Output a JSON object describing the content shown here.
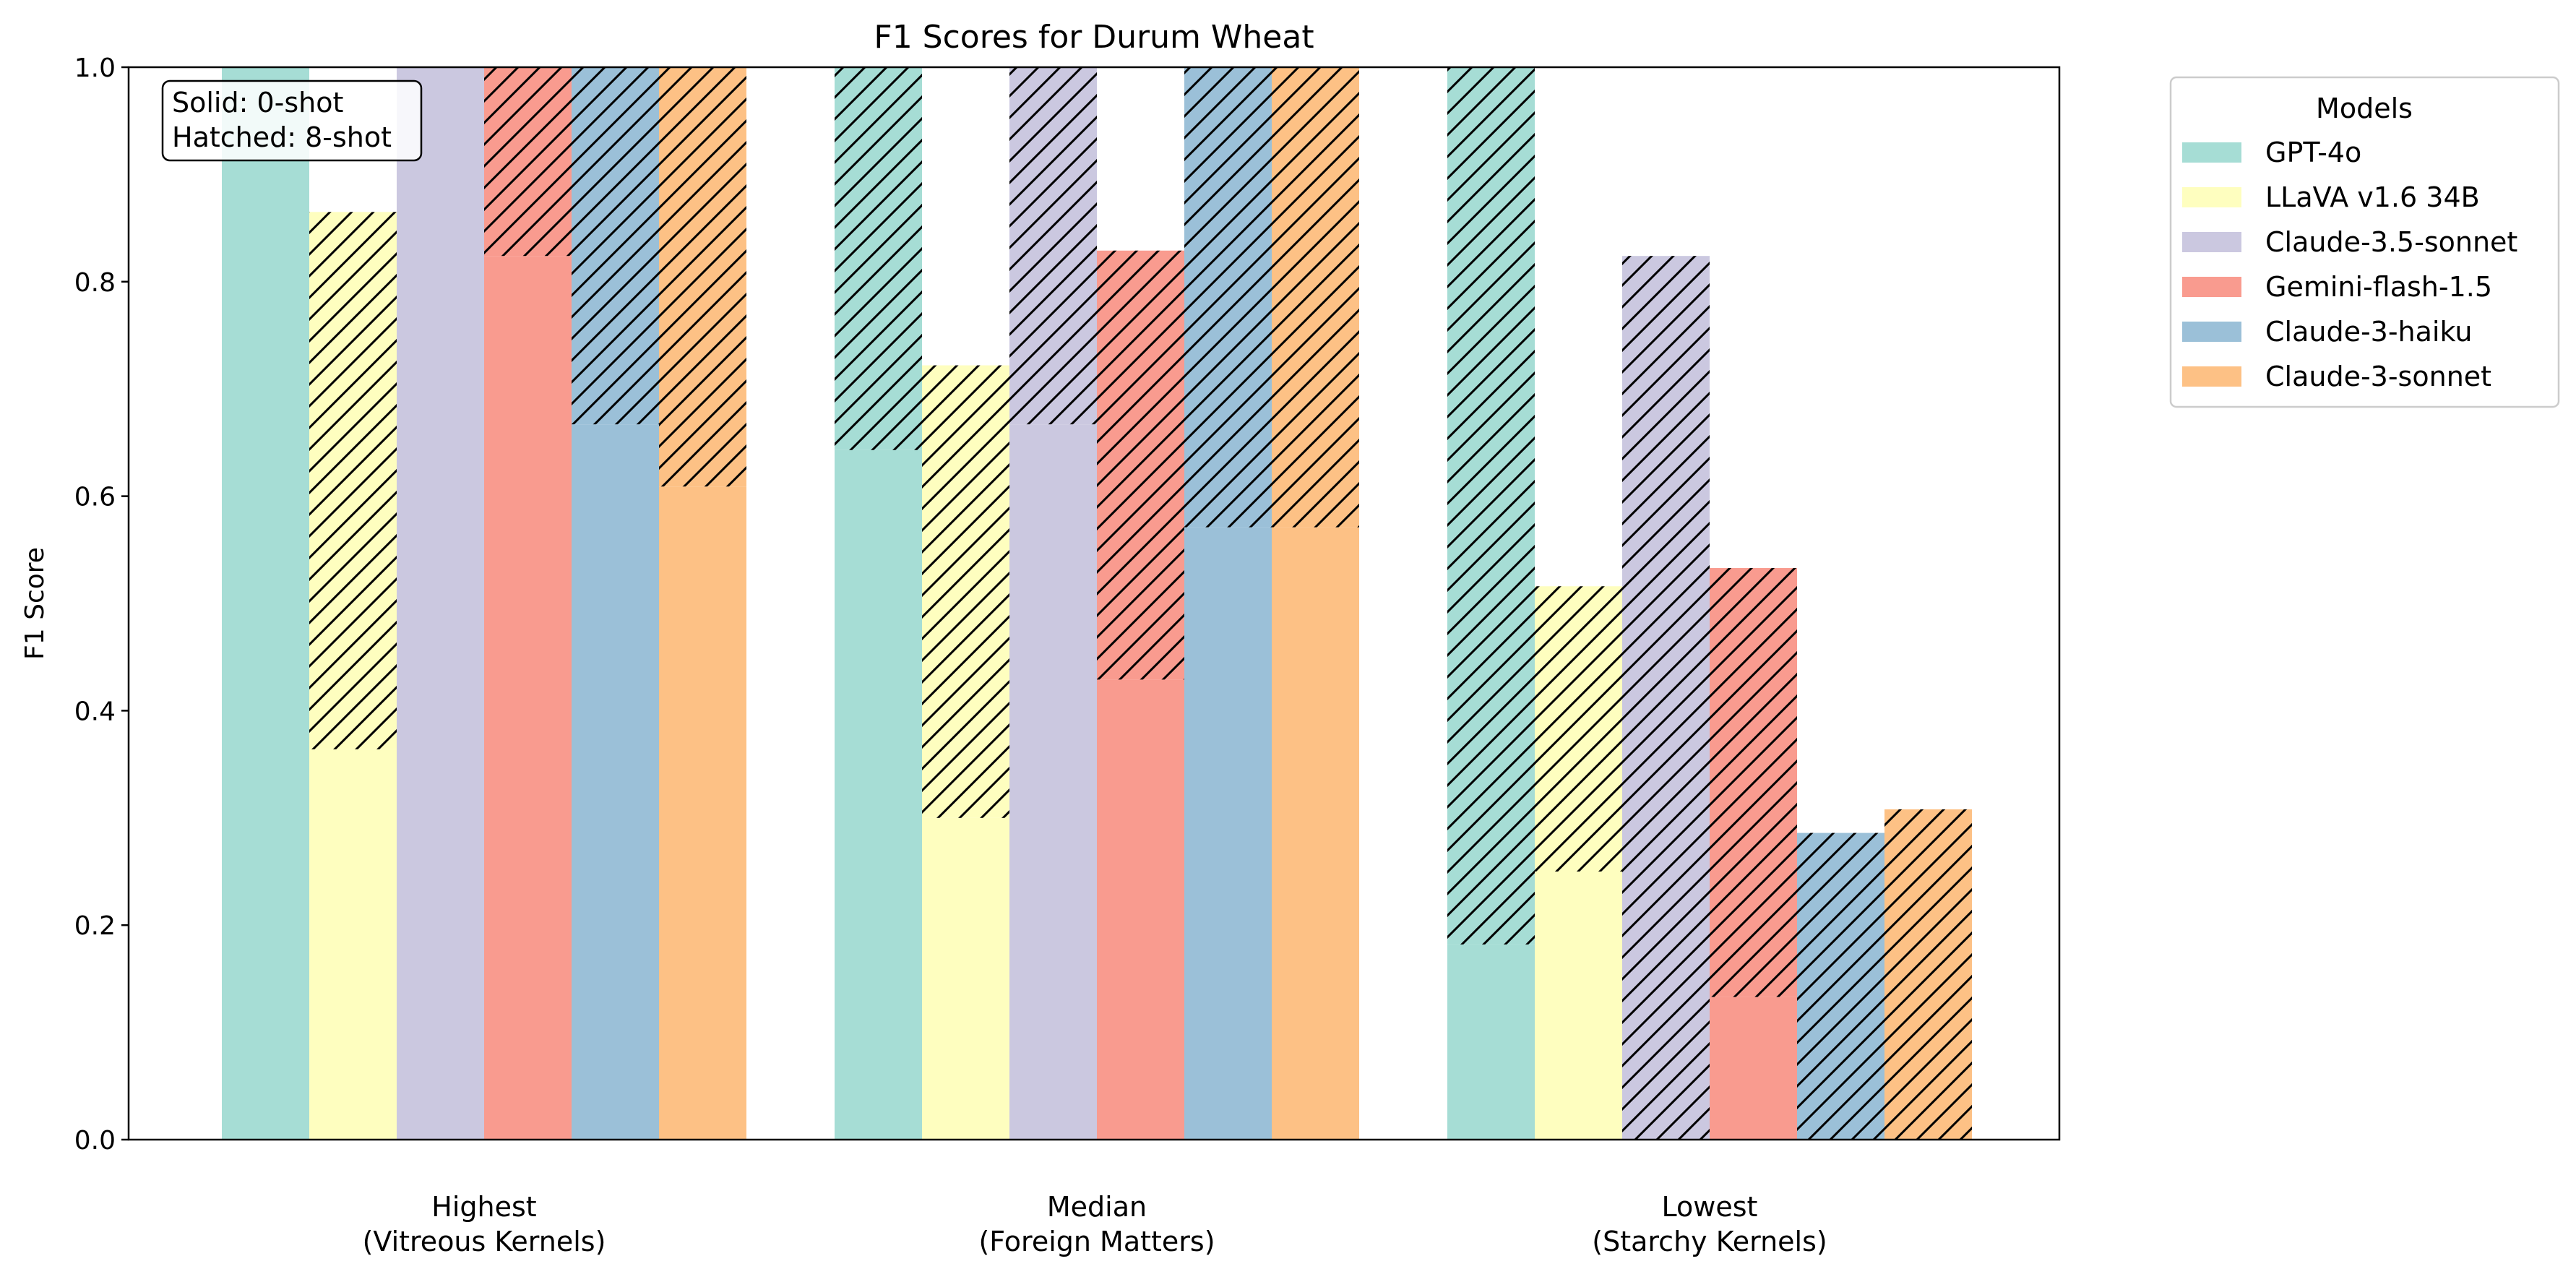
{
  "chart_data": {
    "type": "bar",
    "title": "F1 Scores for Durum Wheat",
    "xlabel": "",
    "ylabel": "F1 Score",
    "ylim": [
      0,
      1.0
    ],
    "yticks": [
      "0.0",
      "0.2",
      "0.4",
      "0.6",
      "0.8",
      "1.0"
    ],
    "categories": [
      [
        "Highest",
        "(Vitreous Kernels)"
      ],
      [
        "Median",
        "(Foreign Matters)"
      ],
      [
        "Lowest",
        "(Starchy Kernels)"
      ]
    ],
    "grid": false,
    "legend": {
      "title": "Models",
      "placement": "outside-top-right"
    },
    "annotation": {
      "lines": [
        "Solid: 0-shot",
        "Hatched: 8-shot"
      ],
      "placement": "top-left"
    },
    "series": [
      {
        "name": "GPT-4o",
        "color": "#a6ddd5",
        "zero_shot": [
          1.0,
          0.643,
          0.182
        ],
        "eight_shot": [
          1.0,
          1.0,
          1.0
        ]
      },
      {
        "name": "LLaVA v1.6 34B",
        "color": "#fefebf",
        "zero_shot": [
          0.364,
          0.3,
          0.25
        ],
        "eight_shot": [
          0.865,
          0.722,
          0.516
        ]
      },
      {
        "name": "Claude-3.5-sonnet",
        "color": "#cbc8e0",
        "zero_shot": [
          1.0,
          0.667,
          0.0
        ],
        "eight_shot": [
          1.0,
          1.0,
          0.824
        ]
      },
      {
        "name": "Gemini-flash-1.5",
        "color": "#f99b8f",
        "zero_shot": [
          0.824,
          0.429,
          0.133
        ],
        "eight_shot": [
          1.0,
          0.829,
          0.533
        ]
      },
      {
        "name": "Claude-3-haiku",
        "color": "#9bc0d8",
        "zero_shot": [
          0.667,
          0.571,
          0.0
        ],
        "eight_shot": [
          1.0,
          1.0,
          0.286
        ]
      },
      {
        "name": "Claude-3-sonnet",
        "color": "#fdc185",
        "zero_shot": [
          0.609,
          0.571,
          0.0
        ],
        "eight_shot": [
          1.0,
          1.0,
          0.308
        ]
      }
    ]
  }
}
